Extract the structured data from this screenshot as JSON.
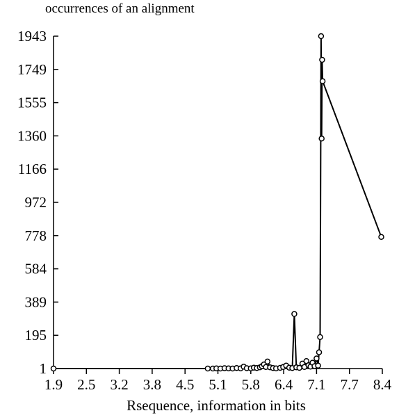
{
  "chart_data": {
    "type": "line",
    "title": "occurrences of an alignment",
    "xlabel": "Rsequence, information in bits",
    "ylabel": "",
    "x_ticks": [
      "1.9",
      "2.5",
      "3.2",
      "3.8",
      "4.5",
      "5.1",
      "5.8",
      "6.4",
      "7.1",
      "7.7",
      "8.4"
    ],
    "y_ticks": [
      "1",
      "195",
      "389",
      "584",
      "778",
      "972",
      "1166",
      "1360",
      "1555",
      "1749",
      "1943"
    ],
    "xlim": [
      1.9,
      8.4
    ],
    "ylim": [
      1,
      1943
    ],
    "grid": false,
    "series": [
      {
        "color": "#000000",
        "marker": "circle",
        "points": [
          [
            1.9,
            1
          ],
          [
            4.95,
            1
          ],
          [
            5.05,
            1
          ],
          [
            5.12,
            2
          ],
          [
            5.2,
            1
          ],
          [
            5.28,
            3
          ],
          [
            5.36,
            2
          ],
          [
            5.44,
            1
          ],
          [
            5.52,
            4
          ],
          [
            5.6,
            2
          ],
          [
            5.66,
            12
          ],
          [
            5.72,
            3
          ],
          [
            5.8,
            2
          ],
          [
            5.86,
            6
          ],
          [
            5.92,
            4
          ],
          [
            5.98,
            8
          ],
          [
            6.02,
            15
          ],
          [
            6.06,
            25
          ],
          [
            6.1,
            10
          ],
          [
            6.13,
            42
          ],
          [
            6.18,
            8
          ],
          [
            6.24,
            4
          ],
          [
            6.3,
            2
          ],
          [
            6.38,
            5
          ],
          [
            6.44,
            10
          ],
          [
            6.5,
            18
          ],
          [
            6.56,
            6
          ],
          [
            6.62,
            4
          ],
          [
            6.66,
            320
          ],
          [
            6.7,
            8
          ],
          [
            6.76,
            5
          ],
          [
            6.82,
            30
          ],
          [
            6.86,
            10
          ],
          [
            6.9,
            45
          ],
          [
            6.94,
            20
          ],
          [
            6.98,
            12
          ],
          [
            7.02,
            35
          ],
          [
            7.06,
            15
          ],
          [
            7.1,
            60
          ],
          [
            7.13,
            18
          ],
          [
            7.15,
            96
          ],
          [
            7.17,
            185
          ],
          [
            7.19,
            1943
          ],
          [
            7.2,
            1345
          ],
          [
            7.21,
            1805
          ],
          [
            7.22,
            1680
          ],
          [
            8.38,
            770
          ]
        ]
      }
    ]
  }
}
